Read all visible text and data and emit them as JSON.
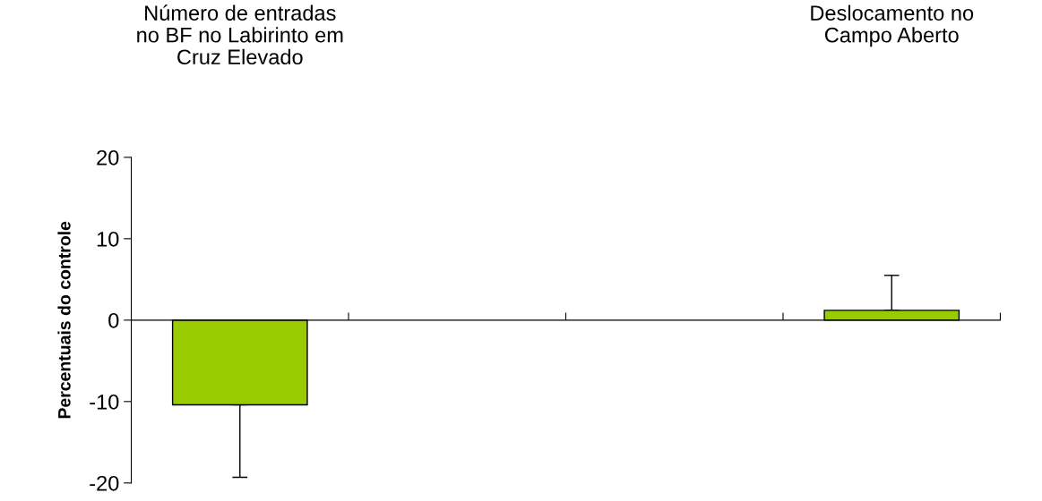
{
  "chart_data": {
    "type": "bar",
    "annotations": [
      "Número de entradas\nno BF no Labirinto em\nCruz Elevado",
      "Deslocamento no\nCampo Aberto"
    ],
    "ylabel": "Percentuais do controle",
    "categories": [
      null,
      null,
      null,
      null
    ],
    "values": [
      -10.4,
      null,
      null,
      1.2
    ],
    "errors": [
      [
        -19.3,
        -10.4
      ],
      null,
      null,
      [
        1.2,
        5.5
      ]
    ],
    "color": "#99cc00",
    "ylim": [
      -20,
      20
    ],
    "yticks": [
      -20,
      -10,
      0,
      10,
      20
    ]
  }
}
